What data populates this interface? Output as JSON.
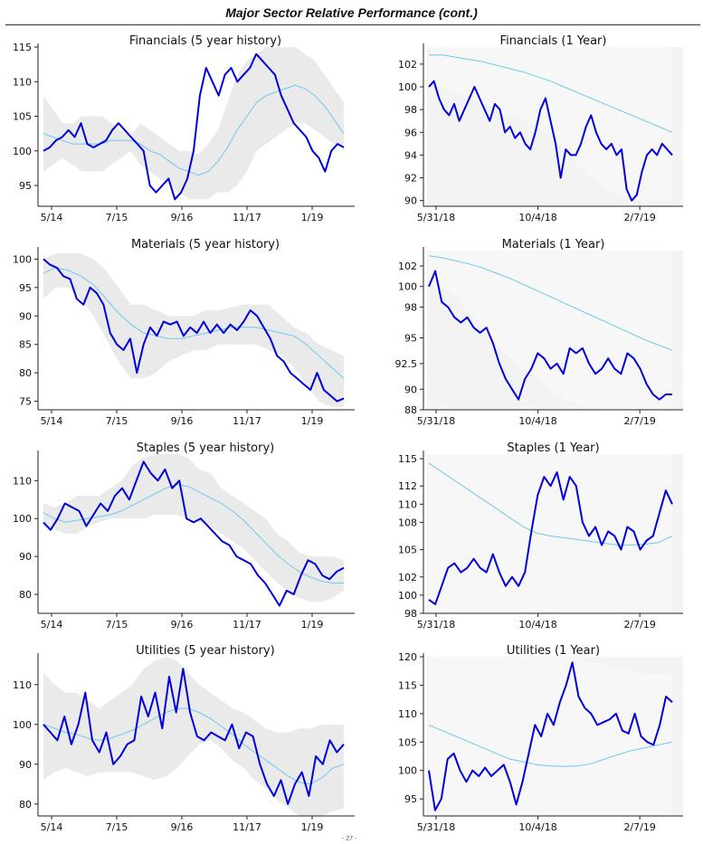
{
  "header": {
    "title": "Major Sector Relative Performance (cont.)"
  },
  "footer": {
    "page": "- 27 -"
  },
  "colors": {
    "price": "#0000dd",
    "avg": "#6fc8ee",
    "band": "#dcdcdc",
    "bg1y": "#f3f3f3"
  },
  "chart_data": [
    {
      "type": "line",
      "title": "Financials (5 year history)",
      "xticks": [
        "5/14",
        "7/15",
        "9/16",
        "11/17",
        "1/19"
      ],
      "ylim": [
        92,
        115
      ],
      "yticks": [
        95,
        100,
        105,
        110,
        115
      ],
      "price": [
        100,
        100.5,
        101.5,
        102,
        103,
        102,
        104,
        101,
        100.5,
        101,
        101.5,
        103,
        104,
        103,
        102,
        101,
        100,
        95,
        94,
        95,
        96,
        93,
        94,
        96,
        100,
        108,
        112,
        110,
        108,
        111,
        112,
        110,
        111,
        112,
        114,
        113,
        112,
        111,
        108,
        106,
        104,
        103,
        102,
        100,
        99,
        97,
        100,
        101,
        100.5
      ],
      "avg": [
        102.5,
        102,
        101.5,
        101,
        101,
        101,
        101,
        101.5,
        101.5,
        101.5,
        101,
        100,
        99.5,
        98.5,
        97.5,
        97,
        96.5,
        97,
        98.5,
        100.5,
        103,
        105,
        107,
        108,
        108.5,
        109,
        109.5,
        109,
        108,
        106.5,
        104.5,
        102.5
      ],
      "upper": [
        108,
        106,
        104,
        104,
        105,
        105,
        105,
        104,
        103,
        102,
        104,
        103,
        102,
        101,
        100,
        100,
        99.5,
        101,
        103,
        107,
        111,
        113,
        114,
        115,
        115,
        115,
        115,
        114,
        113,
        111,
        109,
        107
      ],
      "lower": [
        97,
        98,
        99,
        98,
        97,
        97,
        97,
        98,
        99,
        100,
        98,
        97,
        96,
        95,
        94,
        93,
        93,
        93,
        94,
        94,
        95,
        97,
        100,
        101,
        102,
        103,
        104,
        104,
        103,
        102,
        101,
        100.5
      ]
    },
    {
      "type": "line",
      "title": "Financials (1 Year)",
      "xticks": [
        "5/31/18",
        "10/4/18",
        "2/7/19"
      ],
      "ylim": [
        89.5,
        103.5
      ],
      "yticks": [
        90,
        92,
        94,
        96,
        98,
        100,
        102
      ],
      "price": [
        100,
        100.5,
        99,
        98,
        97.5,
        98.5,
        97,
        98,
        99,
        100,
        99,
        98,
        97,
        98.5,
        98,
        96,
        96.5,
        95.5,
        96,
        95,
        94.5,
        96,
        98,
        99,
        97,
        95,
        92,
        94.5,
        94,
        94,
        95,
        96.5,
        97.5,
        96,
        95,
        94.5,
        95,
        94,
        94.5,
        91,
        90,
        90.5,
        92.5,
        94,
        94.5,
        94,
        95,
        94.5,
        94
      ],
      "avg": [
        102.8,
        102.8,
        102.6,
        102.4,
        102.2,
        101.9,
        101.6,
        101.3,
        100.9,
        100.5,
        100,
        99.5,
        99,
        98.5,
        98,
        97.5,
        97,
        96.5,
        96
      ],
      "upper": [
        103.5,
        103.5,
        103.5,
        103.5,
        103.5,
        103.5,
        103.5,
        103.5,
        103.5,
        103.5,
        103.5,
        103.5,
        103.5,
        103.5,
        103.5,
        103.5,
        103.5,
        103.5,
        103.5
      ],
      "lower": [
        100.5,
        100,
        99.5,
        99,
        98.5,
        98,
        97.5,
        97,
        96.5,
        95.5,
        94.5,
        93,
        92,
        91,
        90.5,
        90.2,
        90,
        90,
        90
      ]
    },
    {
      "type": "line",
      "title": "Materials (5 year history)",
      "xticks": [
        "5/14",
        "7/15",
        "9/16",
        "11/17",
        "1/19"
      ],
      "ylim": [
        73.5,
        101.5
      ],
      "yticks": [
        75,
        80,
        85,
        90,
        95,
        100
      ],
      "price": [
        100,
        99,
        98.5,
        97,
        96.5,
        93,
        92,
        95,
        94,
        92,
        87,
        85,
        84,
        86,
        80,
        85,
        88,
        86.5,
        89,
        88.5,
        89,
        86.5,
        88,
        87,
        89,
        87,
        88.5,
        87,
        88.5,
        87.5,
        89,
        91,
        90,
        88,
        86,
        83,
        82,
        80,
        79,
        78,
        77,
        80,
        77,
        76,
        75,
        75.5
      ],
      "avg": [
        97.5,
        98.5,
        98,
        97,
        95.5,
        93,
        90.5,
        88.5,
        87,
        86.5,
        86,
        86,
        86.5,
        87,
        87.5,
        88,
        88,
        88,
        87.5,
        87,
        86.5,
        85,
        83,
        81,
        79
      ],
      "upper": [
        100,
        101,
        101,
        101,
        100,
        98,
        95,
        92,
        92,
        91,
        90,
        90,
        90,
        91,
        91,
        91.5,
        92,
        92,
        92,
        90,
        88,
        87,
        85,
        84,
        83
      ],
      "lower": [
        93,
        95,
        95,
        93,
        90,
        86,
        82,
        79,
        79,
        80,
        82,
        83,
        84,
        84,
        85,
        85,
        85,
        85,
        84,
        83,
        81,
        78,
        75,
        74,
        74
      ]
    },
    {
      "type": "line",
      "title": "Materials (1 Year)",
      "xticks": [
        "5/31/18",
        "10/4/18",
        "2/7/19"
      ],
      "ylim": [
        88,
        103.5
      ],
      "yticks": [
        88,
        90,
        92.5,
        95,
        98,
        100,
        102
      ],
      "price": [
        100,
        101.5,
        98.5,
        98,
        97,
        96.5,
        97,
        96,
        95.5,
        96,
        94.5,
        92.5,
        91,
        90,
        89,
        91,
        92,
        93.5,
        93,
        92,
        92.5,
        91.5,
        94,
        93.5,
        94,
        92.5,
        91.5,
        92,
        93,
        92,
        91.5,
        93.5,
        93,
        92,
        90.5,
        89.5,
        89,
        89.5,
        89.5
      ],
      "avg": [
        103,
        102.8,
        102.5,
        102.2,
        101.8,
        101.3,
        100.8,
        100.2,
        99.6,
        99,
        98.4,
        97.8,
        97.2,
        96.6,
        96,
        95.4,
        94.8,
        94.3,
        93.8
      ],
      "upper": [
        103.5,
        103.5,
        103.5,
        103.5,
        103.5,
        103.5,
        103.5,
        103.5,
        103.5,
        103.5,
        103.5,
        103.5,
        103.5,
        103.5,
        103.5,
        103.5,
        103.5,
        103.5,
        103.5
      ],
      "lower": [
        101,
        100,
        99,
        97.5,
        96,
        94.5,
        93,
        92,
        91,
        90,
        89,
        88.5,
        88,
        88,
        88,
        88,
        88,
        88,
        88
      ]
    },
    {
      "type": "line",
      "title": "Staples (5 year history)",
      "xticks": [
        "5/14",
        "7/15",
        "9/16",
        "11/17",
        "1/19"
      ],
      "ylim": [
        75,
        117
      ],
      "yticks": [
        80,
        90,
        100,
        110
      ],
      "price": [
        99,
        97,
        100,
        104,
        103,
        102,
        98,
        101,
        104,
        102,
        106,
        108,
        105,
        110,
        115,
        112,
        110,
        113,
        108,
        110,
        100,
        99,
        100,
        98,
        96,
        94,
        93,
        90,
        89,
        88,
        85,
        83,
        80,
        77,
        81,
        80,
        85,
        89,
        88,
        85,
        84,
        86,
        87
      ],
      "avg": [
        101.5,
        100,
        99,
        99.5,
        100,
        100.5,
        101,
        102,
        103.5,
        105,
        106.5,
        108,
        109,
        108.5,
        107,
        105.5,
        104,
        102,
        99.5,
        96.5,
        93.5,
        90.5,
        88,
        86,
        84.5,
        83.5,
        83,
        83
      ],
      "upper": [
        104,
        103,
        104,
        106,
        106,
        106,
        108,
        110,
        114,
        116,
        117,
        117,
        117,
        116,
        113,
        112,
        108,
        106,
        104,
        102,
        100,
        96,
        94,
        91,
        90,
        90,
        90,
        89
      ],
      "lower": [
        98,
        97,
        96,
        96,
        98,
        99,
        100,
        100,
        100,
        100,
        101,
        101,
        101,
        100,
        99,
        98,
        96,
        94,
        92,
        89,
        86,
        83,
        81,
        79,
        78,
        78,
        79,
        81
      ]
    },
    {
      "type": "line",
      "title": "Staples (1 Year)",
      "xticks": [
        "5/31/18",
        "10/4/18",
        "2/7/19"
      ],
      "ylim": [
        98,
        115.5
      ],
      "yticks": [
        98,
        100,
        102,
        105,
        108,
        110,
        112,
        115
      ],
      "price": [
        99.5,
        99,
        101,
        103,
        103.5,
        102.5,
        103,
        104,
        103,
        102.5,
        104.5,
        102.5,
        101,
        102,
        101,
        102.5,
        107,
        111,
        113,
        112,
        113.5,
        110.5,
        113,
        112,
        108,
        106.5,
        107.5,
        105.5,
        107,
        106.5,
        105,
        107.5,
        107,
        105,
        106,
        106.5,
        109,
        111.5,
        110
      ],
      "avg": [
        114.5,
        113.5,
        112.5,
        111.5,
        110.5,
        109.5,
        108.5,
        107.5,
        106.8,
        106.5,
        106.3,
        106.1,
        105.9,
        105.7,
        105.5,
        105.5,
        105.6,
        105.8,
        106.5
      ],
      "upper": [
        115.5,
        115.5,
        115.5,
        115.5,
        115.5,
        115.5,
        115.5,
        115.5,
        115.5,
        115.5,
        115.5,
        115.5,
        115.5,
        115.5,
        115.5,
        115.5,
        115.5,
        115.5,
        115.5
      ],
      "lower": [
        98,
        98,
        98,
        98,
        98,
        98,
        98,
        98,
        98,
        98,
        98,
        98,
        98,
        98,
        98,
        98,
        98,
        98,
        98
      ]
    },
    {
      "type": "line",
      "title": "Utilities (5 year history)",
      "xticks": [
        "5/14",
        "7/15",
        "9/16",
        "11/17",
        "1/19"
      ],
      "ylim": [
        77,
        117
      ],
      "yticks": [
        80,
        90,
        100,
        110
      ],
      "price": [
        100,
        98,
        96,
        102,
        95,
        100,
        108,
        96,
        93,
        98,
        90,
        92,
        95,
        96,
        107,
        102,
        108,
        99,
        112,
        103,
        114,
        103,
        97,
        96,
        98,
        97,
        96,
        100,
        94,
        98,
        97,
        90,
        85,
        82,
        86,
        80,
        85,
        88,
        82,
        92,
        90,
        96,
        93,
        95
      ],
      "avg": [
        100,
        99,
        98,
        97.5,
        96.5,
        96,
        96.5,
        97.5,
        98.5,
        100,
        101.5,
        103,
        104,
        104,
        103,
        101.5,
        99.5,
        97.5,
        95,
        93,
        91,
        89,
        87,
        85.5,
        85,
        86.5,
        89,
        90
      ],
      "upper": [
        113,
        110,
        108,
        108,
        106,
        104,
        106,
        108,
        110,
        114,
        116,
        117,
        116,
        113,
        110,
        108,
        106,
        104,
        103,
        101,
        99,
        98,
        98,
        99,
        99,
        100,
        100,
        100
      ],
      "lower": [
        86,
        88,
        89,
        88,
        87,
        88,
        88,
        88,
        88,
        87,
        86,
        87,
        89,
        92,
        95,
        96,
        94,
        91,
        89,
        86,
        84,
        81,
        79,
        77,
        77,
        77,
        78,
        79
      ]
    },
    {
      "type": "line",
      "title": "Utilities (1 Year)",
      "xticks": [
        "5/31/18",
        "10/4/18",
        "2/7/19"
      ],
      "ylim": [
        92,
        120
      ],
      "yticks": [
        95,
        100,
        105,
        110,
        115,
        120
      ],
      "price": [
        100,
        93,
        95,
        102,
        103,
        100,
        98,
        100,
        99,
        100.5,
        99,
        100,
        101,
        98,
        94,
        98,
        103,
        108,
        106,
        110,
        108,
        112,
        115,
        119,
        113,
        111,
        110,
        108,
        108.5,
        109,
        110,
        107,
        106.5,
        110,
        106,
        105,
        104.5,
        108,
        113,
        112
      ],
      "avg": [
        108,
        107,
        106,
        105,
        104,
        103,
        102,
        101.5,
        101,
        100.8,
        100.7,
        100.8,
        101.2,
        102,
        102.8,
        103.5,
        104,
        104.5,
        105
      ],
      "upper": [
        120,
        120,
        120,
        120,
        120,
        120,
        120,
        120,
        120,
        120,
        120,
        120,
        119,
        118.5,
        118,
        117.5,
        117,
        117,
        117
      ],
      "lower": [
        92,
        92,
        92,
        92,
        92,
        92,
        92,
        92,
        92,
        92,
        92,
        92,
        92,
        92,
        92,
        92,
        92,
        92,
        92
      ]
    }
  ]
}
